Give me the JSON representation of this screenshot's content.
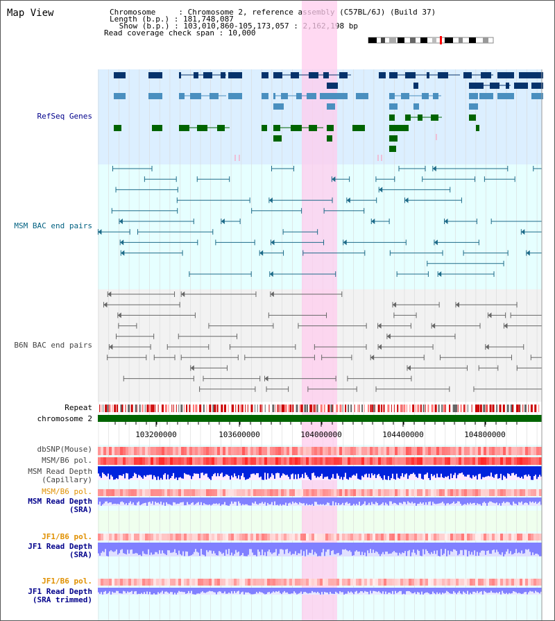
{
  "title": "Map View",
  "header": {
    "chromosome_line": "Chromosome     : Chromosome 2, reference assembly (C57BL/6J) (Build 37)",
    "length_line": "Length (b.p.) : 181,748,087",
    "show_line": " Show (b.p.) : 103,010,860-105,173,057 : 2,162,198 bp",
    "coverage_line": "Read coverage check span : 10,000"
  },
  "tracks": {
    "refseq": "RefSeq Genes",
    "msm_bac": "MSM BAC end pairs",
    "b6n_bac": "B6N BAC end pairs",
    "repeat": "Repeat",
    "chromosome": "chromosome 2",
    "dbsnp": "dbSNP(Mouse)",
    "msm_b6_pol": "MSM/B6 pol.",
    "msm_depth_cap_1": "MSM Read Depth",
    "msm_depth_cap_2": "(Capillary)",
    "msm_b6_pol_2": "MSM/B6 pol.",
    "msm_depth_sra_1": "MSM Read Depth",
    "msm_depth_sra_2": "(SRA)",
    "jf1_b6_pol": "JF1/B6 pol.",
    "jf1_depth_sra_1": "JF1 Read Depth",
    "jf1_depth_sra_2": "(SRA)",
    "jf1_b6_pol_2": "JF1/B6 pol.",
    "jf1_depth_trim_1": "JF1 Read Depth",
    "jf1_depth_trim_2": "(SRA trimmed)"
  },
  "axis_ticks": [
    "103200000",
    "103600000",
    "104000000",
    "104400000",
    "104800000"
  ],
  "colors": {
    "refseq_bg": "#dcefff",
    "msm_bac_bg": "#e6ffff",
    "b6n_bac_bg": "#f2f2f2",
    "highlight": "#ffccee",
    "gene_dark": "#06336b",
    "gene_mid": "#4a8fbf",
    "gene_green": "#006400",
    "msm_bac_line": "#1c6a88",
    "b6n_bac_line": "#666666",
    "chromosome_bar": "#006400",
    "depth_blue": "#0022dd",
    "depth_light_blue": "#8080ff",
    "label_navy": "#00008b",
    "label_orange": "#e09000",
    "label_teal": "#006080"
  }
}
